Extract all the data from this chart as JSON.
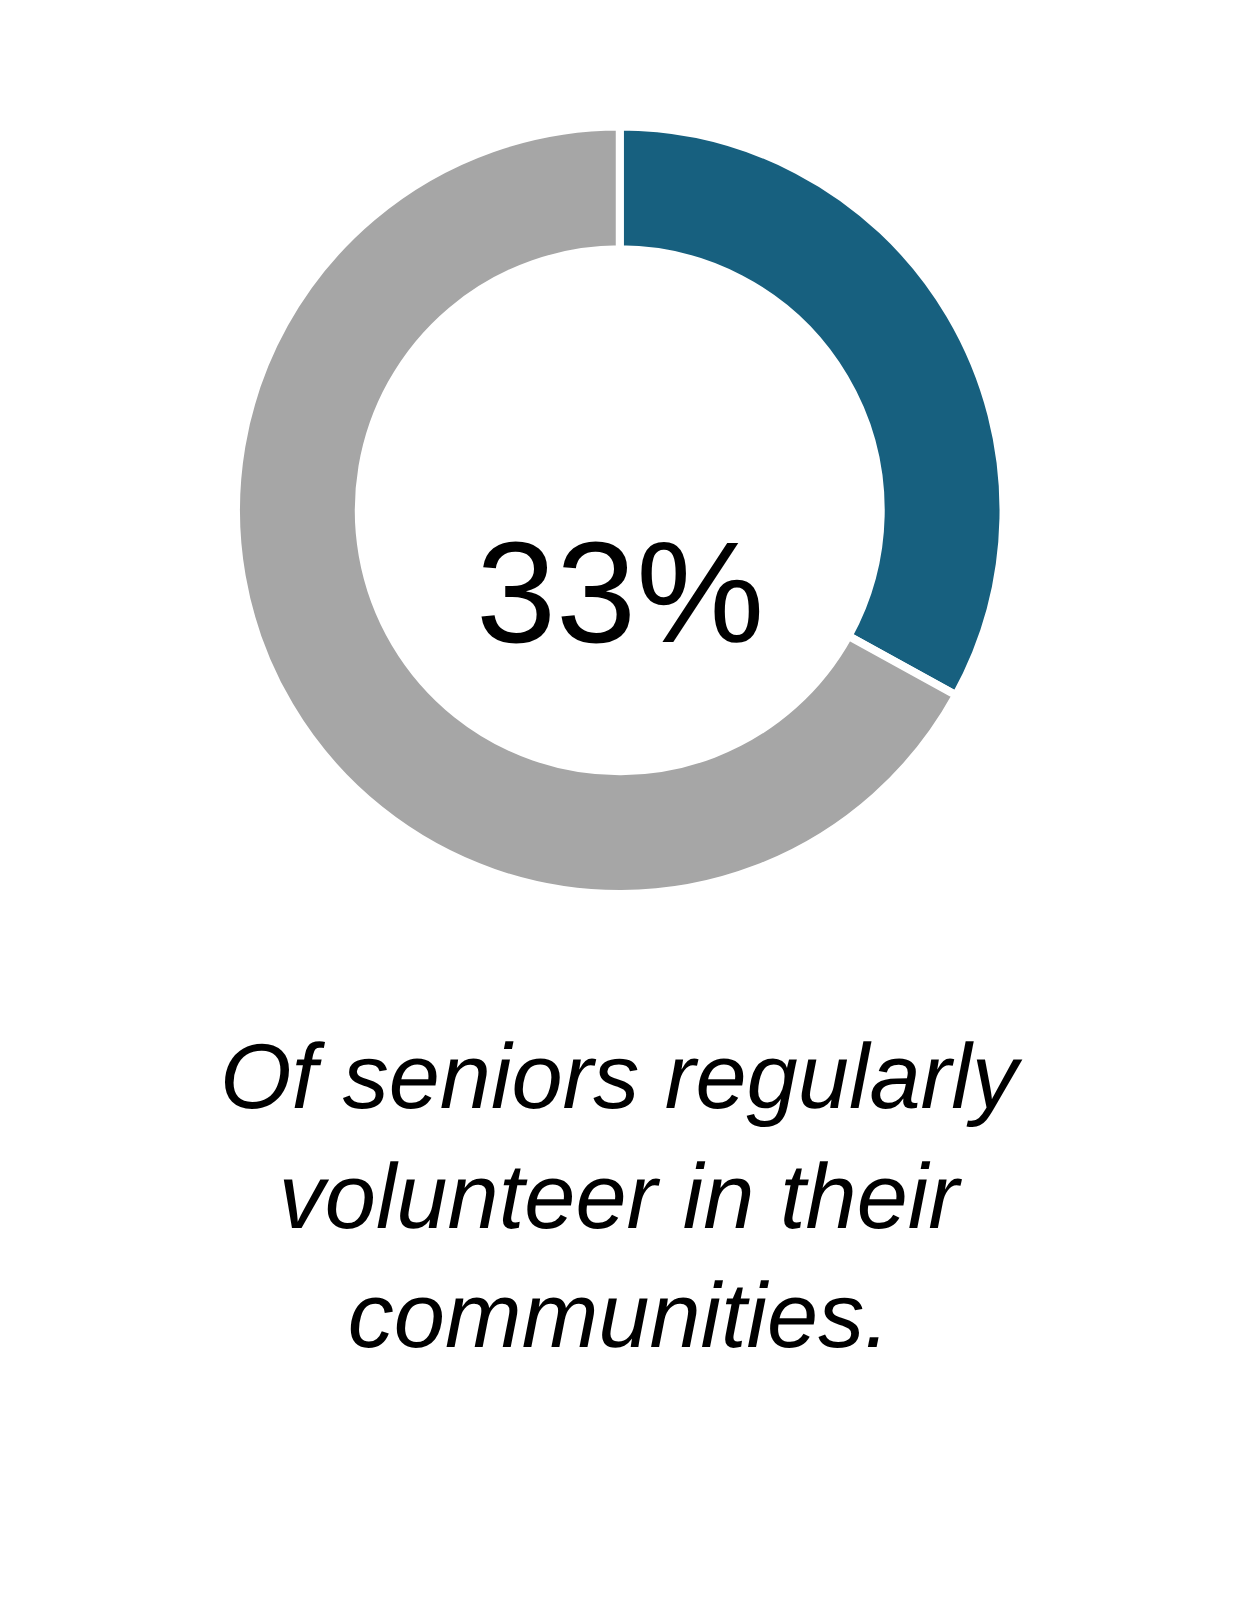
{
  "chart_data": {
    "type": "donut",
    "categories": [
      null,
      null
    ],
    "values": [
      33,
      67
    ],
    "colors": [
      "#17607f",
      "#a6a6a6"
    ],
    "legend": false,
    "annotations": [
      "33%",
      "Of seniors regularly volunteer in their communities."
    ]
  }
}
